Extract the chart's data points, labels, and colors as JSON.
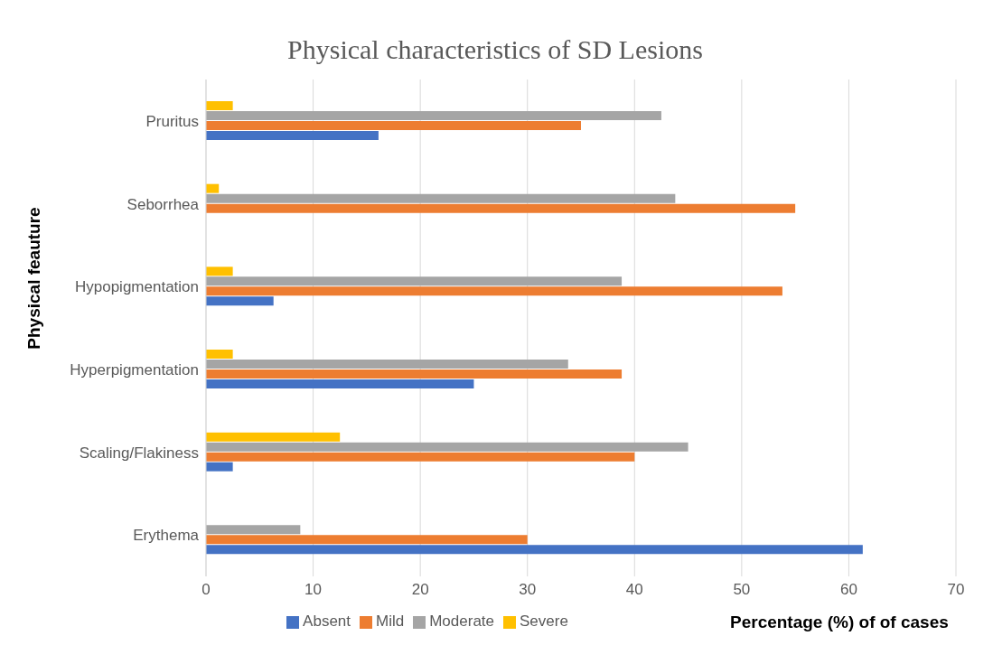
{
  "chart_data": {
    "type": "bar",
    "orientation": "horizontal",
    "title": "Physical characteristics of SD Lesions",
    "xlabel": "Percentage (%) of of cases",
    "ylabel": "Physical feauture",
    "categories": [
      "Pruritus",
      "Seborrhea",
      "Hypopigmentation",
      "Hyperpigmentation",
      "Scaling/Flakiness",
      "Erythema"
    ],
    "series": [
      {
        "name": "Severe",
        "color": "#ffc000",
        "values": [
          2.5,
          1.2,
          2.5,
          2.5,
          12.5,
          0
        ]
      },
      {
        "name": "Moderate",
        "color": "#a5a5a5",
        "values": [
          42.5,
          43.8,
          38.8,
          33.8,
          45,
          8.8
        ]
      },
      {
        "name": "Mild",
        "color": "#ed7d31",
        "values": [
          35,
          55,
          53.8,
          38.8,
          40,
          30
        ]
      },
      {
        "name": "Absent",
        "color": "#4472c4",
        "values": [
          16.1,
          0,
          6.3,
          25,
          2.5,
          61.3
        ]
      }
    ],
    "xlim": [
      0,
      70
    ],
    "xticks": [
      0,
      10,
      20,
      30,
      40,
      50,
      60,
      70
    ],
    "grid": "x",
    "legend": "bottom"
  }
}
